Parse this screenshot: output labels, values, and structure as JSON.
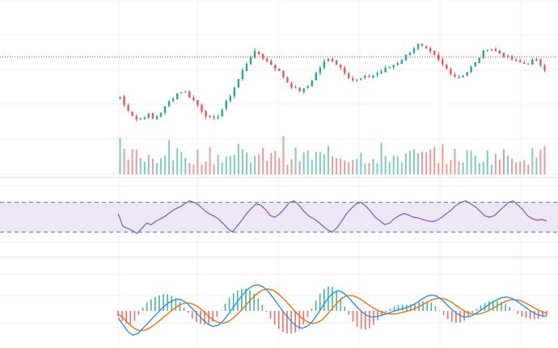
{
  "chart_data": {
    "type": "line",
    "title": "",
    "colors": {
      "up": "#26a69a",
      "down": "#ef5350",
      "up_volume": "#80cbc4",
      "down_volume": "#ef9a9a",
      "rsi_line": "#7e57c2",
      "rsi_band": "#ede7f6",
      "macd_line": "#2196f3",
      "signal_line": "#ff6d00",
      "price_line": "#e53935",
      "grid": "#f0f0f3",
      "dashed": "#7a6a8a"
    },
    "bars": 105,
    "price_scale": {
      "ylim": [
        0,
        100
      ]
    },
    "price_close_path": [
      38,
      30,
      26,
      20,
      18,
      21,
      23,
      19,
      22,
      26,
      31,
      36,
      40,
      43,
      42,
      38,
      34,
      29,
      24,
      20,
      18,
      22,
      28,
      35,
      42,
      50,
      58,
      66,
      73,
      76,
      74,
      70,
      67,
      64,
      60,
      55,
      50,
      46,
      44,
      43,
      46,
      52,
      58,
      64,
      69,
      71,
      68,
      64,
      60,
      55,
      52,
      52,
      54,
      55,
      56,
      58,
      60,
      62,
      64,
      66,
      69,
      72,
      76,
      80,
      83,
      80,
      77,
      74,
      70,
      66,
      62,
      58,
      55,
      56,
      58,
      62,
      66,
      72,
      77,
      80,
      78,
      76,
      74,
      72,
      70,
      68,
      67,
      66,
      68,
      70,
      66,
      62
    ],
    "price_line_level": 72,
    "volume_scale": {
      "ylim": [
        0,
        100
      ]
    },
    "rsi": {
      "ylim": [
        0,
        100
      ],
      "upper_band": 70,
      "lower_band": 30,
      "values": [
        55,
        38,
        35,
        32,
        28,
        35,
        42,
        40,
        45,
        48,
        52,
        57,
        61,
        64,
        68,
        72,
        70,
        66,
        60,
        55,
        52,
        48,
        42,
        35,
        30,
        38,
        46,
        55,
        62,
        68,
        66,
        60,
        52,
        50,
        55,
        62,
        70,
        72,
        66,
        58,
        52,
        48,
        44,
        38,
        33,
        30,
        36,
        45,
        55,
        62,
        68,
        70,
        65,
        58,
        50,
        45,
        40,
        42,
        48,
        52,
        55,
        53,
        50,
        49,
        47,
        45,
        44,
        46,
        50,
        55,
        60,
        66,
        70,
        72,
        68,
        64,
        58,
        52,
        50,
        52,
        58,
        64,
        70,
        72,
        66,
        60,
        52,
        48,
        46,
        47,
        45
      ]
    },
    "macd": {
      "ylim": [
        -10,
        10
      ],
      "macd_values": [
        -2,
        -4,
        -6,
        -7,
        -6.5,
        -5,
        -3.5,
        -2,
        -0.5,
        1,
        2.2,
        3,
        3.4,
        3,
        2,
        0.5,
        -1,
        -2.5,
        -3.8,
        -4.5,
        -4.2,
        -3,
        -1.2,
        0.8,
        2.8,
        4.6,
        6.2,
        7.2,
        7.5,
        7,
        5.8,
        4,
        2,
        0,
        -1.8,
        -3.4,
        -4.6,
        -5,
        -4.4,
        -3,
        -1,
        1.2,
        3.4,
        5,
        5.8,
        5.4,
        4.2,
        2.6,
        1,
        -0.4,
        -1.4,
        -1.8,
        -1.6,
        -1.2,
        -0.8,
        -0.3,
        0.2,
        0.6,
        1,
        1.6,
        2.4,
        3.4,
        4.2,
        4.6,
        4.2,
        3.2,
        1.8,
        0.4,
        -0.8,
        -1.6,
        -1.8,
        -1.4,
        -0.6,
        0.4,
        1.4,
        2.4,
        3.2,
        3.8,
        4,
        3.6,
        2.8,
        1.8,
        0.8,
        -0.2,
        -1,
        -1.4,
        -1.5
      ],
      "signal_values": [
        -1,
        -2,
        -3.5,
        -4.8,
        -5.6,
        -5.7,
        -5.2,
        -4.3,
        -3.2,
        -2,
        -0.8,
        0.4,
        1.4,
        2.1,
        2.3,
        2,
        1.2,
        0,
        -1.3,
        -2.5,
        -3.3,
        -3.6,
        -3.2,
        -2.2,
        -0.9,
        0.6,
        2.2,
        3.8,
        5.1,
        6,
        6.3,
        6,
        5.1,
        3.8,
        2.3,
        0.7,
        -0.9,
        -2.2,
        -3.2,
        -3.6,
        -3.4,
        -2.5,
        -1,
        0.7,
        2.4,
        3.7,
        4.4,
        4.4,
        3.9,
        3,
        2,
        1,
        0.2,
        -0.4,
        -0.8,
        -0.9,
        -0.8,
        -0.5,
        -0.1,
        0.4,
        1,
        1.7,
        2.5,
        3.2,
        3.6,
        3.6,
        3.2,
        2.4,
        1.4,
        0.4,
        -0.4,
        -0.9,
        -1,
        -0.7,
        -0.2,
        0.6,
        1.4,
        2.2,
        2.9,
        3.2,
        3.2,
        2.8,
        2.1,
        1.3,
        0.5,
        -0.2,
        -0.7
      ]
    }
  }
}
